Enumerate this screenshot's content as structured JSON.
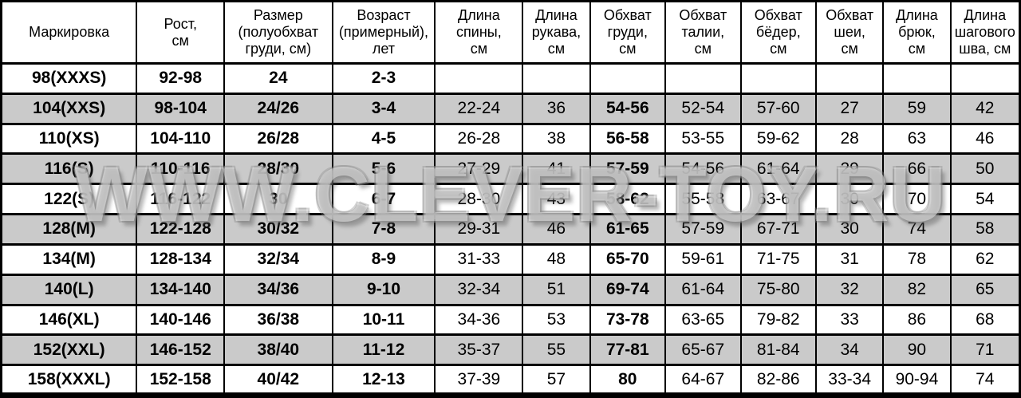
{
  "watermark": {
    "text": "WWW.CLEVER-TOY.RU"
  },
  "colors": {
    "shaded_row": "#cacaca",
    "plain_row": "#ffffff",
    "border": "#000000",
    "text": "#000000",
    "watermark_outline": "#8c8c8c"
  },
  "chart_data": {
    "type": "table",
    "title": "",
    "columns": [
      "Маркировка",
      "Рост,\nсм",
      "Размер\n(полуобхват\nгруди, см)",
      "Возраст\n(примерный),\nлет",
      "Длина\nспины,\nсм",
      "Длина\nрукава,\nсм",
      "Обхват\nгруди,\nсм",
      "Обхват\nталии,\nсм",
      "Обхват\nбёдер,\nсм",
      "Обхват\nшеи,\nсм",
      "Длина\nбрюк,\nсм",
      "Длина\nшагового\nшва, см"
    ],
    "rows": [
      [
        "98(XXXS)",
        "92-98",
        "24",
        "2-3",
        "",
        "",
        "",
        "",
        "",
        "",
        "",
        ""
      ],
      [
        "104(XXS)",
        "98-104",
        "24/26",
        "3-4",
        "22-24",
        "36",
        "54-56",
        "52-54",
        "57-60",
        "27",
        "59",
        "42"
      ],
      [
        "110(XS)",
        "104-110",
        "26/28",
        "4-5",
        "26-28",
        "38",
        "56-58",
        "53-55",
        "59-62",
        "28",
        "63",
        "46"
      ],
      [
        "116(S)",
        "110-116",
        "28/30",
        "5-6",
        "27-29",
        "41",
        "57-59",
        "54-56",
        "61-64",
        "29",
        "66",
        "50"
      ],
      [
        "122(S)",
        "116-122",
        "30",
        "6-7",
        "28-30",
        "43",
        "58-62",
        "55-58",
        "63-67",
        "30",
        "70",
        "54"
      ],
      [
        "128(M)",
        "122-128",
        "30/32",
        "7-8",
        "29-31",
        "46",
        "61-65",
        "57-59",
        "67-71",
        "30",
        "74",
        "58"
      ],
      [
        "134(M)",
        "128-134",
        "32/34",
        "8-9",
        "31-33",
        "48",
        "65-70",
        "59-61",
        "71-75",
        "31",
        "78",
        "62"
      ],
      [
        "140(L)",
        "134-140",
        "34/36",
        "9-10",
        "32-34",
        "51",
        "69-74",
        "61-64",
        "75-80",
        "32",
        "82",
        "65"
      ],
      [
        "146(XL)",
        "140-146",
        "36/38",
        "10-11",
        "34-36",
        "53",
        "73-78",
        "63-65",
        "79-82",
        "33",
        "86",
        "68"
      ],
      [
        "152(XXL)",
        "146-152",
        "38/40",
        "11-12",
        "35-37",
        "55",
        "77-81",
        "65-67",
        "81-84",
        "34",
        "90",
        "71"
      ],
      [
        "158(XXXL)",
        "152-158",
        "40/42",
        "12-13",
        "37-39",
        "57",
        "80",
        "64-67",
        "82-86",
        "33-34",
        "90-94",
        "74"
      ]
    ],
    "bold_columns": [
      0,
      1,
      2,
      3,
      6
    ],
    "shaded_row_labels": [
      "104(XXS)",
      "116(S)",
      "128(M)",
      "140(L)",
      "152(XXL)"
    ],
    "column_widths_percent": [
      13.3,
      8.6,
      10.6,
      10.1,
      8.6,
      6.6,
      7.4,
      7.4,
      7.4,
      6.6,
      6.6,
      6.8
    ]
  }
}
